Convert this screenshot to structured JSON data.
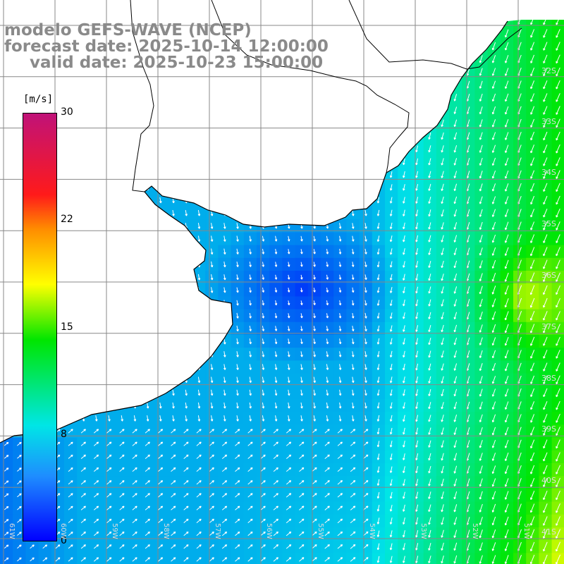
{
  "title": {
    "model": "modelo GEFS-WAVE (NCEP)",
    "forecast": "forecast date: 2025-10-14 12:00:00",
    "valid": "valid date: 2025-10-23 15:00:00"
  },
  "colorbar": {
    "unit": "[m/s]",
    "ticks": [
      "30",
      "22",
      "15",
      "8",
      "0"
    ],
    "colors": [
      "#c01278",
      "#ff1a1a",
      "#ff8c00",
      "#ffff00",
      "#00e600",
      "#00e6e6",
      "#1e8cff",
      "#0000ff"
    ]
  },
  "lat_labels": [
    "32S",
    "33S",
    "34S",
    "35S",
    "36S",
    "37S",
    "38S",
    "39S",
    "40S",
    "41S"
  ],
  "lon_labels": [
    "61W",
    "60W",
    "59W",
    "58W",
    "57W",
    "56W",
    "55W",
    "54W",
    "53W",
    "52W",
    "51W"
  ],
  "colors": {
    "land": "#ffffff",
    "grid": "#888888",
    "coast": "#000000",
    "arrow": "#ffffff",
    "title_text": "#8a8a8a"
  }
}
